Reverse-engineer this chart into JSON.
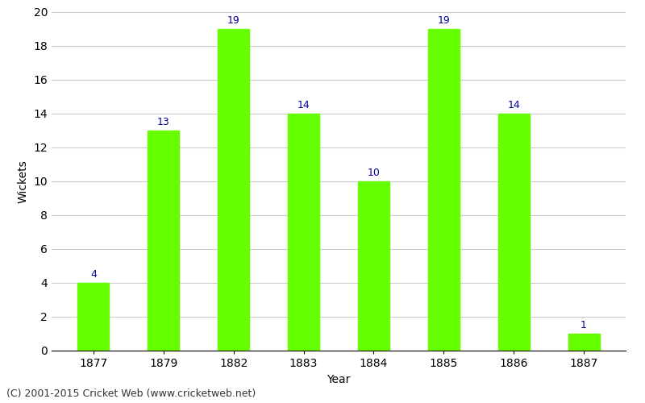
{
  "categories": [
    "1877",
    "1879",
    "1882",
    "1883",
    "1884",
    "1885",
    "1886",
    "1887"
  ],
  "values": [
    4,
    13,
    19,
    14,
    10,
    19,
    14,
    1
  ],
  "bar_color": "#66ff00",
  "bar_edge_color": "#66ff00",
  "xlabel": "Year",
  "ylabel": "Wickets",
  "ylim": [
    0,
    20
  ],
  "yticks": [
    0,
    2,
    4,
    6,
    8,
    10,
    12,
    14,
    16,
    18,
    20
  ],
  "label_color": "#000099",
  "label_fontsize": 9,
  "grid_color": "#cccccc",
  "background_color": "#ffffff",
  "footer_text": "(C) 2001-2015 Cricket Web (www.cricketweb.net)",
  "footer_fontsize": 9,
  "footer_color": "#333333",
  "tick_fontsize": 10,
  "axis_label_fontsize": 10
}
